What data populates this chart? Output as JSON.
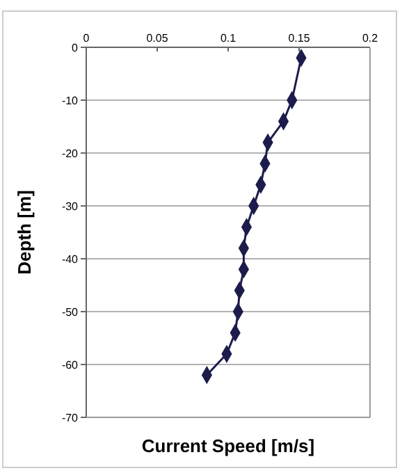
{
  "chart_data": {
    "type": "line",
    "xlabel": "Current Speed [m/s]",
    "ylabel": "Depth [m]",
    "series": [
      {
        "color": "#1c1c4c",
        "x": [
          0.1515,
          0.145,
          0.139,
          0.128,
          0.126,
          0.123,
          0.118,
          0.113,
          0.111,
          0.111,
          0.108,
          0.107,
          0.105,
          0.099,
          0.085
        ],
        "values": [
          -2,
          -10,
          -14,
          -18,
          -22,
          -26,
          -30,
          -34,
          -38,
          -42,
          -46,
          -50,
          -54,
          -58,
          -62
        ]
      }
    ],
    "xlim": [
      0,
      0.2
    ],
    "xticks": [
      0,
      0.05,
      0.1,
      0.15,
      0.2
    ],
    "ylim": [
      -70,
      0
    ],
    "yticks": [
      -70,
      -60,
      -50,
      -40,
      -30,
      -20,
      -10,
      0
    ],
    "grid": "y",
    "marker": "diamond",
    "line_style": "solid"
  }
}
